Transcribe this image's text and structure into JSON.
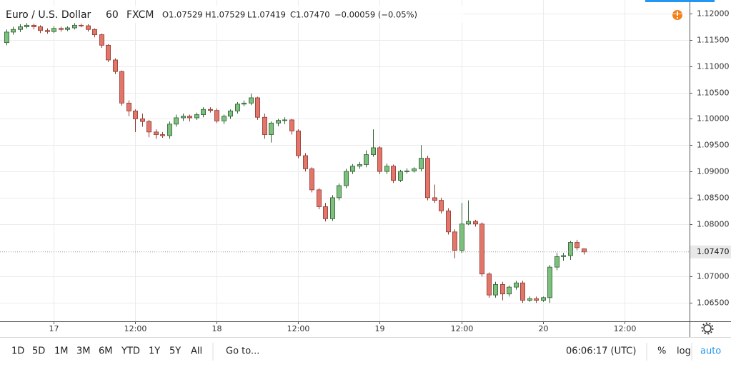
{
  "chart_data": {
    "type": "candlestick",
    "title": "Euro / U.S. Dollar",
    "interval": "60",
    "source": "FXCM",
    "ohlc_labels": [
      "O1.07529",
      "H1.07529",
      "L1.07419",
      "C1.07470"
    ],
    "change_label": "−0.00059 (−0.05%)",
    "open": [
      1.1145,
      1.1165,
      1.117,
      1.1175,
      1.1178,
      1.1175,
      1.1168,
      1.1166,
      1.1172,
      1.117,
      1.1173,
      1.1178,
      1.1177,
      1.117,
      1.116,
      1.114,
      1.1112,
      1.109,
      1.103,
      1.1015,
      1.1,
      1.0995,
      1.0975,
      1.097,
      1.0968,
      1.099,
      1.1002,
      1.1005,
      1.1002,
      1.1008,
      1.1018,
      1.1016,
      1.0996,
      1.1005,
      1.1015,
      1.1028,
      1.103,
      1.104,
      1.1003,
      1.097,
      1.0992,
      1.0997,
      1.0998,
      1.0977,
      1.093,
      1.0905,
      1.0865,
      1.0833,
      1.081,
      1.085,
      1.0873,
      1.09,
      1.091,
      1.0913,
      1.0932,
      1.0945,
      1.09,
      1.091,
      1.0883,
      1.09,
      1.0901,
      1.0905,
      1.0925,
      1.085,
      1.0845,
      1.0825,
      1.0785,
      1.075,
      1.08,
      1.0805,
      1.08,
      1.0705,
      1.0665,
      1.0685,
      1.0667,
      1.068,
      1.0688,
      1.0655,
      1.0658,
      1.0655,
      1.066,
      1.0718,
      1.0738,
      1.074,
      1.0765,
      1.07529
    ],
    "high": [
      1.117,
      1.1175,
      1.118,
      1.1182,
      1.1181,
      1.1178,
      1.1172,
      1.1176,
      1.1175,
      1.1176,
      1.1182,
      1.1181,
      1.118,
      1.1172,
      1.1162,
      1.1142,
      1.1115,
      1.1092,
      1.1035,
      1.1018,
      1.101,
      1.0998,
      1.098,
      1.0975,
      1.0995,
      1.1008,
      1.101,
      1.1008,
      1.1012,
      1.1022,
      1.1022,
      1.102,
      1.1008,
      1.1018,
      1.1032,
      1.1035,
      1.1048,
      1.1042,
      1.101,
      1.0995,
      1.1,
      1.1003,
      1.1,
      1.098,
      1.0935,
      1.0908,
      1.0868,
      1.084,
      1.0855,
      1.0877,
      1.0905,
      1.0914,
      1.0918,
      1.094,
      1.098,
      1.0948,
      1.0915,
      1.0913,
      1.0903,
      1.0906,
      1.0908,
      1.095,
      1.093,
      1.0875,
      1.085,
      1.083,
      1.079,
      1.084,
      1.0845,
      1.0808,
      1.0803,
      1.0708,
      1.069,
      1.069,
      1.0683,
      1.0692,
      1.0692,
      1.0662,
      1.0662,
      1.0662,
      1.0722,
      1.0745,
      1.0745,
      1.0768,
      1.077,
      1.07529
    ],
    "low": [
      1.114,
      1.116,
      1.1165,
      1.1172,
      1.117,
      1.1163,
      1.1162,
      1.1163,
      1.1166,
      1.1167,
      1.117,
      1.1174,
      1.1166,
      1.1155,
      1.1135,
      1.1108,
      1.1085,
      1.1025,
      1.1005,
      1.0975,
      1.0985,
      1.0965,
      1.0962,
      1.0964,
      1.0962,
      1.0985,
      1.0996,
      1.0995,
      1.0998,
      1.1003,
      1.1012,
      1.0992,
      1.099,
      1.1,
      1.101,
      1.1024,
      1.1026,
      1.0998,
      1.0962,
      1.0955,
      1.0986,
      1.099,
      1.097,
      1.0925,
      1.09,
      1.086,
      1.0828,
      1.0805,
      1.0806,
      1.0845,
      1.0868,
      1.0895,
      1.0905,
      1.0908,
      1.0928,
      1.0895,
      1.0895,
      1.0878,
      1.088,
      1.0896,
      1.0898,
      1.09,
      1.0845,
      1.084,
      1.082,
      1.078,
      1.0735,
      1.0745,
      1.0798,
      1.0795,
      1.07,
      1.066,
      1.066,
      1.0655,
      1.0662,
      1.0675,
      1.065,
      1.0652,
      1.065,
      1.0652,
      1.065,
      1.0712,
      1.073,
      1.0732,
      1.075,
      1.07419
    ],
    "close": [
      1.1165,
      1.117,
      1.1175,
      1.1178,
      1.1175,
      1.1168,
      1.1166,
      1.1172,
      1.117,
      1.1173,
      1.1178,
      1.1177,
      1.117,
      1.116,
      1.114,
      1.1112,
      1.109,
      1.103,
      1.1015,
      1.1,
      1.0995,
      1.0975,
      1.097,
      1.0968,
      1.099,
      1.1002,
      1.1005,
      1.1002,
      1.1008,
      1.1018,
      1.1016,
      1.0996,
      1.1005,
      1.1015,
      1.1028,
      1.103,
      1.104,
      1.1003,
      1.097,
      1.0992,
      1.0997,
      1.0998,
      1.0977,
      1.093,
      1.0905,
      1.0865,
      1.0833,
      1.081,
      1.085,
      1.0873,
      1.09,
      1.091,
      1.0913,
      1.0932,
      1.0945,
      1.09,
      1.091,
      1.0883,
      1.09,
      1.0901,
      1.0905,
      1.0925,
      1.085,
      1.0845,
      1.0825,
      1.0785,
      1.075,
      1.08,
      1.0805,
      1.08,
      1.0705,
      1.0665,
      1.0685,
      1.0667,
      1.068,
      1.0688,
      1.0655,
      1.0658,
      1.0655,
      1.066,
      1.0718,
      1.0738,
      1.074,
      1.0765,
      1.0755,
      1.0747
    ],
    "up_color": "#7dbf7d",
    "up_border": "#2f5f33",
    "down_color": "#e2766a",
    "down_border": "#8e3a31",
    "ylim": [
      1.0615,
      1.1226
    ],
    "yticks": [
      {
        "value": 1.12,
        "label": "1.12000"
      },
      {
        "value": 1.115,
        "label": "1.11500"
      },
      {
        "value": 1.11,
        "label": "1.11000"
      },
      {
        "value": 1.105,
        "label": "1.10500"
      },
      {
        "value": 1.1,
        "label": "1.10000"
      },
      {
        "value": 1.095,
        "label": "1.09500"
      },
      {
        "value": 1.09,
        "label": "1.09000"
      },
      {
        "value": 1.085,
        "label": "1.08500"
      },
      {
        "value": 1.08,
        "label": "1.08000"
      },
      {
        "value": 1.07,
        "label": "1.07000"
      },
      {
        "value": 1.065,
        "label": "1.06500"
      }
    ],
    "xlim": [
      -0.9,
      100.6
    ],
    "xticks": [
      {
        "value": 7,
        "label": "17"
      },
      {
        "value": 19,
        "label": "12:00"
      },
      {
        "value": 31,
        "label": "18"
      },
      {
        "value": 43,
        "label": "12:00"
      },
      {
        "value": 55,
        "label": "19"
      },
      {
        "value": 67,
        "label": "12:00"
      },
      {
        "value": 79,
        "label": "20"
      },
      {
        "value": 91,
        "label": "12:00"
      }
    ],
    "last_price": {
      "value": 1.0747,
      "label": "1.07470"
    },
    "grid": true
  },
  "toolbar": {
    "ranges": [
      "1D",
      "5D",
      "1M",
      "3M",
      "6M",
      "YTD",
      "1Y",
      "5Y",
      "All"
    ],
    "goto": "Go to...",
    "clock": "06:06:17 (UTC)",
    "percent": "%",
    "log": "log",
    "auto": "auto"
  }
}
